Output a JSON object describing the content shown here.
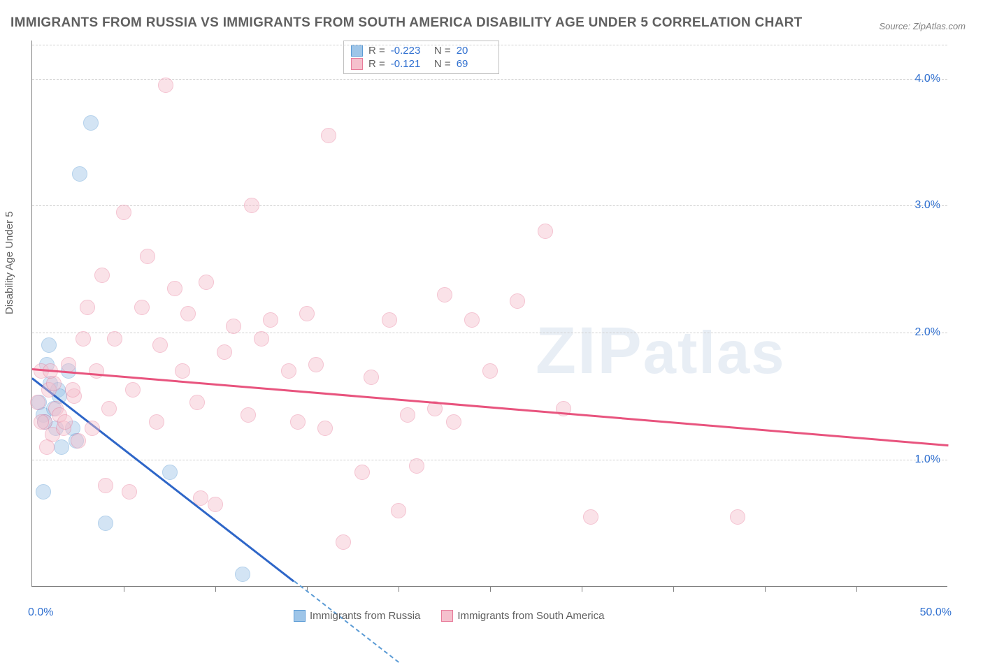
{
  "title": "IMMIGRANTS FROM RUSSIA VS IMMIGRANTS FROM SOUTH AMERICA DISABILITY AGE UNDER 5 CORRELATION CHART",
  "source": "Source: ZipAtlas.com",
  "ylabel": "Disability Age Under 5",
  "watermark": "ZIPatlas",
  "chart": {
    "type": "scatter",
    "xlim": [
      0,
      50
    ],
    "ylim": [
      0,
      4.3
    ],
    "xticks_label_left": "0.0%",
    "xticks_label_right": "50.0%",
    "xtick_positions": [
      5,
      10,
      15,
      20,
      25,
      30,
      35,
      40,
      45
    ],
    "yticks": [
      {
        "v": 1.0,
        "label": "1.0%"
      },
      {
        "v": 2.0,
        "label": "2.0%"
      },
      {
        "v": 3.0,
        "label": "3.0%"
      },
      {
        "v": 4.0,
        "label": "4.0%"
      }
    ],
    "grid_color": "#d0d0d0",
    "axis_color": "#808080",
    "background_color": "#ffffff",
    "tick_label_color": "#3070d0",
    "tick_label_fontsize": 16,
    "title_fontsize": 19,
    "title_color": "#606060",
    "point_radius": 11,
    "point_opacity": 0.45,
    "series": [
      {
        "name": "Immigrants from Russia",
        "fill_color": "#9ec5e8",
        "stroke_color": "#5b9bd5",
        "line_color": "#2e66c8",
        "stats_r": "-0.223",
        "stats_n": "20",
        "trend": {
          "x1": 0,
          "y1": 1.65,
          "x2": 14.3,
          "y2": 0.05,
          "dash_to_x": 20
        },
        "points": [
          [
            0.4,
            1.45
          ],
          [
            0.6,
            1.35
          ],
          [
            0.8,
            1.75
          ],
          [
            0.9,
            1.9
          ],
          [
            1.0,
            1.6
          ],
          [
            1.2,
            1.4
          ],
          [
            1.4,
            1.55
          ],
          [
            1.6,
            1.1
          ],
          [
            2.0,
            1.7
          ],
          [
            2.2,
            1.25
          ],
          [
            2.6,
            3.25
          ],
          [
            3.2,
            3.65
          ],
          [
            2.4,
            1.15
          ],
          [
            4.0,
            0.5
          ],
          [
            0.6,
            0.75
          ],
          [
            7.5,
            0.9
          ],
          [
            11.5,
            0.1
          ],
          [
            1.5,
            1.5
          ],
          [
            0.7,
            1.3
          ],
          [
            1.3,
            1.25
          ]
        ]
      },
      {
        "name": "Immigrants from South America",
        "fill_color": "#f5c0cd",
        "stroke_color": "#e87b9a",
        "line_color": "#e8547e",
        "stats_r": "-0.121",
        "stats_n": "69",
        "trend": {
          "x1": 0,
          "y1": 1.72,
          "x2": 50,
          "y2": 1.12
        },
        "points": [
          [
            0.3,
            1.45
          ],
          [
            0.5,
            1.7
          ],
          [
            0.7,
            1.3
          ],
          [
            0.9,
            1.55
          ],
          [
            1.1,
            1.2
          ],
          [
            1.3,
            1.4
          ],
          [
            1.5,
            1.35
          ],
          [
            1.7,
            1.25
          ],
          [
            0.8,
            1.1
          ],
          [
            1.2,
            1.6
          ],
          [
            2.0,
            1.75
          ],
          [
            2.3,
            1.5
          ],
          [
            2.8,
            1.95
          ],
          [
            3.0,
            2.2
          ],
          [
            3.5,
            1.7
          ],
          [
            3.8,
            2.45
          ],
          [
            4.2,
            1.4
          ],
          [
            4.5,
            1.95
          ],
          [
            5.0,
            2.95
          ],
          [
            5.5,
            1.55
          ],
          [
            6.0,
            2.2
          ],
          [
            6.3,
            2.6
          ],
          [
            6.8,
            1.3
          ],
          [
            7.0,
            1.9
          ],
          [
            7.3,
            3.95
          ],
          [
            7.8,
            2.35
          ],
          [
            8.2,
            1.7
          ],
          [
            8.5,
            2.15
          ],
          [
            9.0,
            1.45
          ],
          [
            9.5,
            2.4
          ],
          [
            10.0,
            0.65
          ],
          [
            10.5,
            1.85
          ],
          [
            11.0,
            2.05
          ],
          [
            11.8,
            1.35
          ],
          [
            12.5,
            1.95
          ],
          [
            13.0,
            2.1
          ],
          [
            14.0,
            1.7
          ],
          [
            14.5,
            1.3
          ],
          [
            15.0,
            2.15
          ],
          [
            15.5,
            1.75
          ],
          [
            16.0,
            1.25
          ],
          [
            16.2,
            3.55
          ],
          [
            17.0,
            0.35
          ],
          [
            18.0,
            0.9
          ],
          [
            18.5,
            1.65
          ],
          [
            19.5,
            2.1
          ],
          [
            20.0,
            0.6
          ],
          [
            20.5,
            1.35
          ],
          [
            21.0,
            0.95
          ],
          [
            22.0,
            1.4
          ],
          [
            22.5,
            2.3
          ],
          [
            23.0,
            1.3
          ],
          [
            24.0,
            2.1
          ],
          [
            25.0,
            1.7
          ],
          [
            26.5,
            2.25
          ],
          [
            28.0,
            2.8
          ],
          [
            29.0,
            1.4
          ],
          [
            30.5,
            0.55
          ],
          [
            38.5,
            0.55
          ],
          [
            2.5,
            1.15
          ],
          [
            4.0,
            0.8
          ],
          [
            5.3,
            0.75
          ],
          [
            9.2,
            0.7
          ],
          [
            12.0,
            3.0
          ],
          [
            1.0,
            1.7
          ],
          [
            0.5,
            1.3
          ],
          [
            1.8,
            1.3
          ],
          [
            2.2,
            1.55
          ],
          [
            3.3,
            1.25
          ]
        ]
      }
    ]
  }
}
